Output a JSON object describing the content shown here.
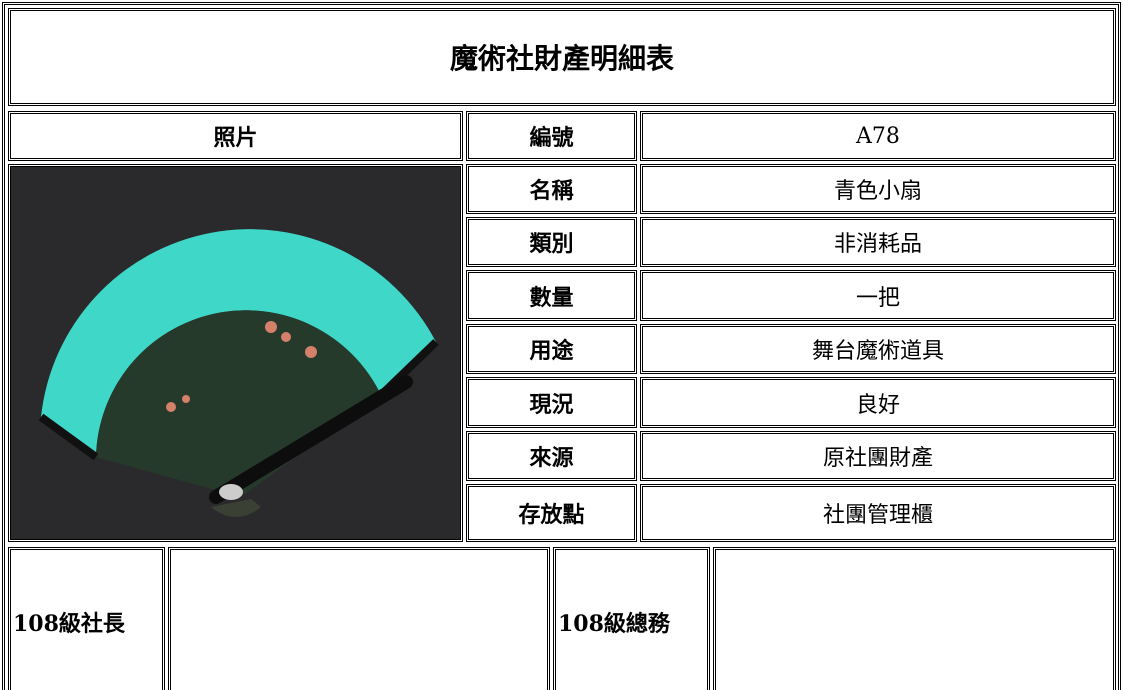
{
  "title": "魔術社財產明細表",
  "photo_header": "照片",
  "rows": [
    {
      "label": "編號",
      "value": "A78"
    },
    {
      "label": "名稱",
      "value": "青色小扇"
    },
    {
      "label": "類別",
      "value": "非消耗品"
    },
    {
      "label": "數量",
      "value": "一把"
    },
    {
      "label": "用途",
      "value": "舞台魔術道具"
    },
    {
      "label": "現況",
      "value": "良好"
    },
    {
      "label": "來源",
      "value": "原社團財產"
    },
    {
      "label": "存放點",
      "value": "社團管理櫃"
    }
  ],
  "signatures": [
    {
      "label": "108級社長"
    },
    {
      "label": "108級總務"
    }
  ]
}
